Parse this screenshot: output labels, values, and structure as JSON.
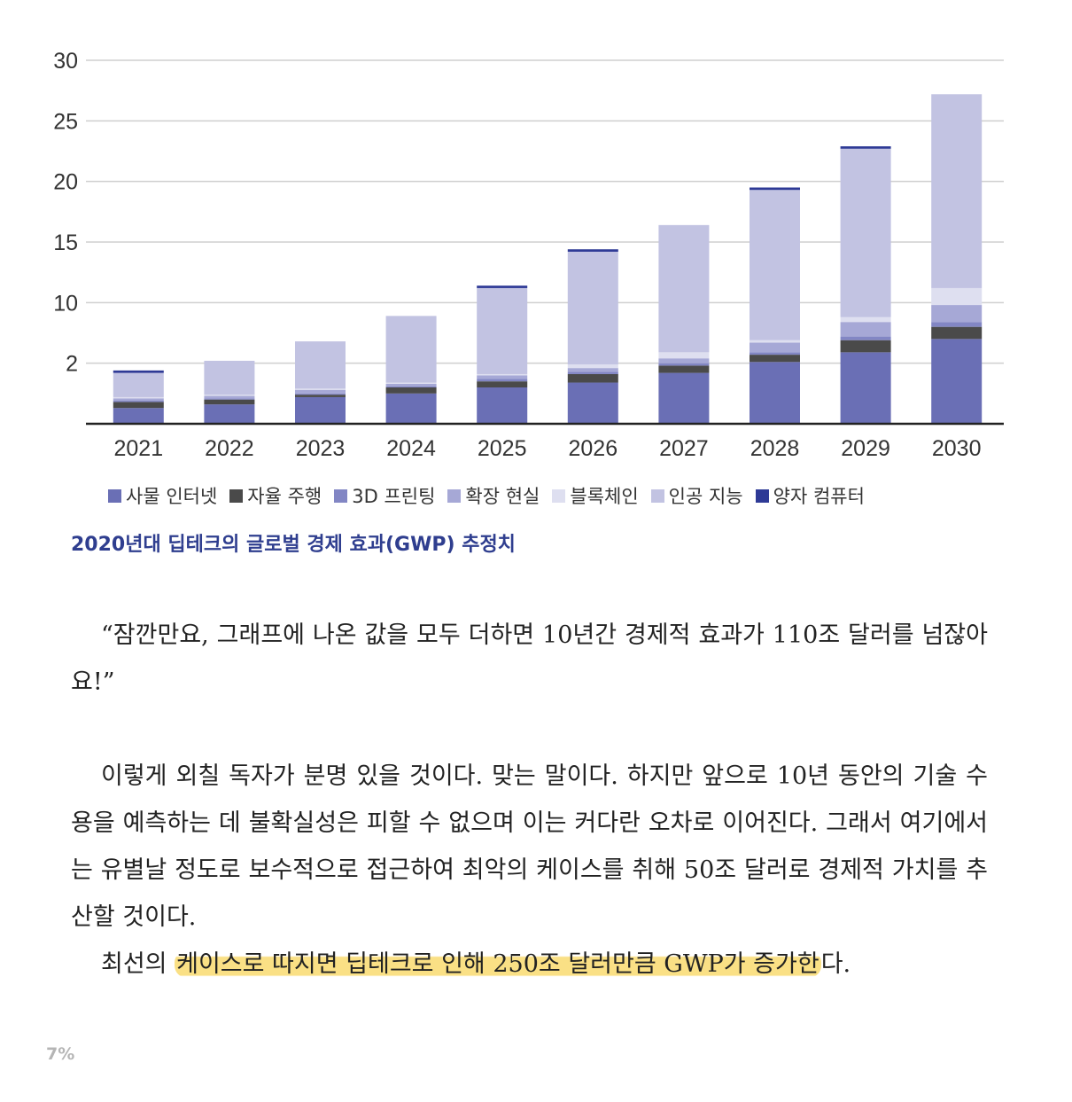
{
  "chart_data": {
    "type": "bar",
    "stacked": true,
    "categories": [
      "2021",
      "2022",
      "2023",
      "2024",
      "2025",
      "2026",
      "2027",
      "2028",
      "2029",
      "2030"
    ],
    "y_tick_labels": [
      "2",
      "10",
      "15",
      "20",
      "25",
      "30"
    ],
    "ylim": [
      0,
      30
    ],
    "grid": true,
    "legend_placement": "bottom",
    "series": [
      {
        "name": "사물 인터넷",
        "color": "#6a6fb5",
        "values": [
          1.3,
          1.6,
          2.2,
          2.5,
          3.0,
          3.4,
          4.2,
          5.1,
          5.9,
          7.0
        ]
      },
      {
        "name": "자율 주행",
        "color": "#4a4a4a",
        "values": [
          0.5,
          0.4,
          0.2,
          0.5,
          0.5,
          0.7,
          0.6,
          0.6,
          1.0,
          1.0
        ]
      },
      {
        "name": "3D 프린팅",
        "color": "#8286c4",
        "values": [
          0.1,
          0.1,
          0.1,
          0.1,
          0.2,
          0.2,
          0.2,
          0.2,
          0.3,
          0.4
        ]
      },
      {
        "name": "확장 현실",
        "color": "#a6a8d6",
        "values": [
          0.2,
          0.2,
          0.3,
          0.2,
          0.3,
          0.3,
          0.4,
          0.8,
          1.2,
          1.4
        ]
      },
      {
        "name": "블록체인",
        "color": "#dedff0",
        "values": [
          0.1,
          0.1,
          0.1,
          0.1,
          0.1,
          0.3,
          0.5,
          0.2,
          0.4,
          1.4
        ]
      },
      {
        "name": "인공 지능",
        "color": "#c2c3e2",
        "values": [
          2.0,
          2.8,
          3.9,
          5.5,
          7.1,
          9.3,
          10.5,
          12.4,
          13.9,
          16.0
        ]
      },
      {
        "name": "양자 컴퓨터",
        "color": "#2e3a96",
        "values": [
          0.2,
          0.0,
          0.0,
          0.0,
          0.2,
          0.2,
          0.0,
          0.2,
          0.2,
          0.0
        ]
      }
    ]
  },
  "caption": "2020년대 딥테크의 글로벌 경제 효과(GWP) 추정치",
  "paragraphs": {
    "p1": "“잠깐만요, 그래프에 나온 값을 모두 더하면 10년간 경제적 효과가 110조 달러를 넘잖아요!”",
    "p2": "이렇게 외칠 독자가 분명 있을 것이다. 맞는 말이다. 하지만 앞으로 10년 동안의 기술 수용을 예측하는 데 불확실성은 피할 수 없으며 이는 커다란 오차로 이어진다. 그래서 여기에서는 유별날 정도로 보수적으로 접근하여 최악의 케이스를 취해 50조 달러로 경제적 가치를 추산할 것이다.",
    "p3_before": "최선의 ",
    "p3_highlight": "케이스로 따지면 딥테크로 인해 250조 달러만큼 GWP가 증가한",
    "p3_after": "다."
  },
  "progress": "7%"
}
